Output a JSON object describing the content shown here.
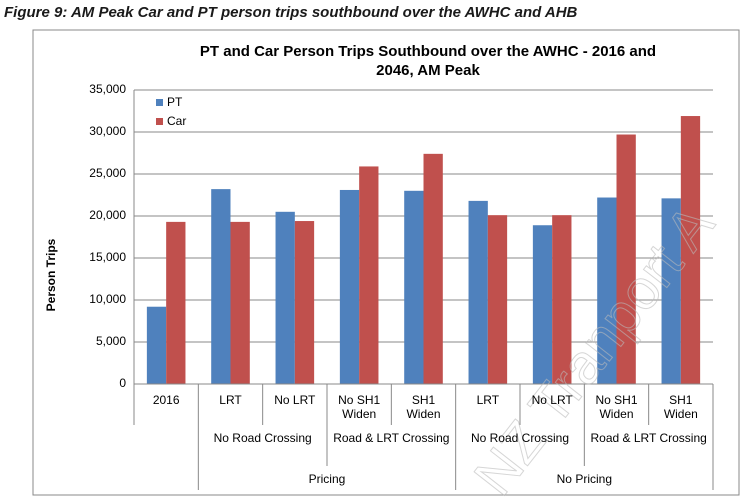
{
  "caption": "Figure 9: AM Peak Car and PT person trips southbound over the AWHC and AHB",
  "watermark": "NZ Tranport A",
  "chart_data": {
    "type": "bar",
    "title": "PT and Car Person Trips Southbound over the AWHC - 2016 and 2046, AM Peak",
    "ylabel": "Person Trips",
    "category_tree": [
      {
        "groups": [
          {
            "categories": [
              "2016"
            ]
          }
        ]
      },
      {
        "name": "Pricing",
        "groups": [
          {
            "name": "No Road Crossing",
            "categories": [
              "LRT",
              "No LRT"
            ]
          },
          {
            "name": "Road & LRT Crossing",
            "categories": [
              "No SH1 Widen",
              "SH1 Widen"
            ]
          }
        ]
      },
      {
        "name": "No Pricing",
        "groups": [
          {
            "name": "No Road Crossing",
            "categories": [
              "LRT",
              "No LRT"
            ]
          },
          {
            "name": "Road & LRT Crossing",
            "categories": [
              "No SH1 Widen",
              "SH1 Widen"
            ]
          }
        ]
      }
    ],
    "series": [
      {
        "name": "PT",
        "color": "#4f81bd",
        "values": [
          9200,
          23200,
          20500,
          23100,
          23000,
          21800,
          18900,
          22200,
          22100
        ]
      },
      {
        "name": "Car",
        "color": "#c0504d",
        "values": [
          19300,
          19300,
          19400,
          25900,
          27400,
          20100,
          20100,
          29700,
          31900
        ]
      }
    ],
    "ylim": [
      0,
      35000
    ],
    "yticks": [
      0,
      {
        "value": 5000,
        "label": "5,000"
      },
      {
        "value": 10000,
        "label": "10,000"
      },
      {
        "value": 15000,
        "label": "15,000"
      },
      {
        "value": 20000,
        "label": "20,000"
      },
      {
        "value": 25000,
        "label": "25,000"
      },
      {
        "value": 30000,
        "label": "30,000"
      },
      {
        "value": 35000,
        "label": "35,000"
      }
    ],
    "grid": true,
    "legend": "top-left"
  }
}
